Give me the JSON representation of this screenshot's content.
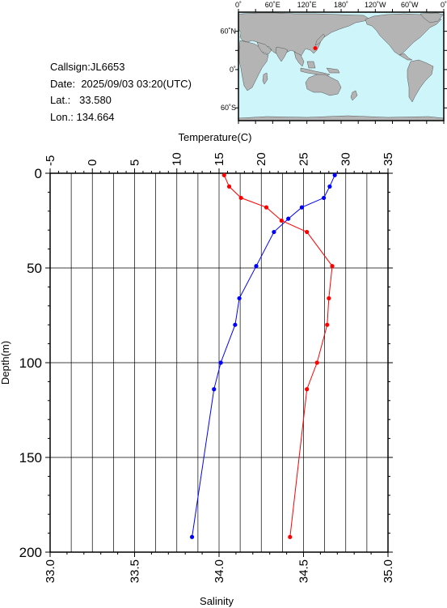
{
  "header": {
    "callsign_label": "Callsign:",
    "callsign": "JL6653",
    "date_label": "Date:",
    "date": "2025/09/03 03:20(UTC)",
    "lat_label": "Lat.:",
    "lat": "33.580",
    "lon_label": "Lon.:",
    "lon": "134.664"
  },
  "map": {
    "top_labels": [
      "0˚",
      "60˚E",
      "120˚E",
      "180˚",
      "120˚W",
      "60˚W",
      "0˚"
    ],
    "left_labels": [
      "60˚N",
      "0˚",
      "60˚S"
    ],
    "ocean_color": "#cdf5fa",
    "land_color": "#b4b4b4",
    "marker_color": "#ff0000",
    "marker": {
      "lat": 33.58,
      "lon": 134.664
    }
  },
  "chart_data": {
    "type": "line",
    "title": "",
    "temperature_axis": {
      "label": "Temperature(C)",
      "range": [
        -5,
        35
      ],
      "ticks": [
        "-5",
        "0",
        "5",
        "10",
        "15",
        "20",
        "25",
        "30",
        "35"
      ]
    },
    "salinity_axis": {
      "label": "Salinity",
      "range": [
        33.0,
        35.0
      ],
      "ticks": [
        "33.0",
        "33.5",
        "34.0",
        "34.5",
        "35.0"
      ]
    },
    "depth_axis": {
      "label": "Depth(m)",
      "range": [
        0,
        200
      ],
      "ticks": [
        "0",
        "50",
        "100",
        "150",
        "200"
      ]
    },
    "grid": true,
    "series": [
      {
        "quantity": "temperature",
        "color": "#0000ff",
        "points": [
          {
            "depth": 1,
            "value": 28.7
          },
          {
            "depth": 7,
            "value": 28.1
          },
          {
            "depth": 13,
            "value": 27.4
          },
          {
            "depth": 18,
            "value": 24.8
          },
          {
            "depth": 24,
            "value": 23.2
          },
          {
            "depth": 31,
            "value": 21.5
          },
          {
            "depth": 49,
            "value": 19.4
          },
          {
            "depth": 66,
            "value": 17.4
          },
          {
            "depth": 80,
            "value": 16.9
          },
          {
            "depth": 100,
            "value": 15.2
          },
          {
            "depth": 114,
            "value": 14.4
          },
          {
            "depth": 192,
            "value": 11.8
          }
        ]
      },
      {
        "quantity": "salinity",
        "color": "#ff0000",
        "points": [
          {
            "depth": 1,
            "value": 34.03
          },
          {
            "depth": 7,
            "value": 34.06
          },
          {
            "depth": 13,
            "value": 34.13
          },
          {
            "depth": 18,
            "value": 34.28
          },
          {
            "depth": 25,
            "value": 34.37
          },
          {
            "depth": 31,
            "value": 34.52
          },
          {
            "depth": 49,
            "value": 34.67
          },
          {
            "depth": 66,
            "value": 34.65
          },
          {
            "depth": 80,
            "value": 34.64
          },
          {
            "depth": 100,
            "value": 34.58
          },
          {
            "depth": 114,
            "value": 34.52
          },
          {
            "depth": 192,
            "value": 34.42
          }
        ]
      }
    ]
  }
}
